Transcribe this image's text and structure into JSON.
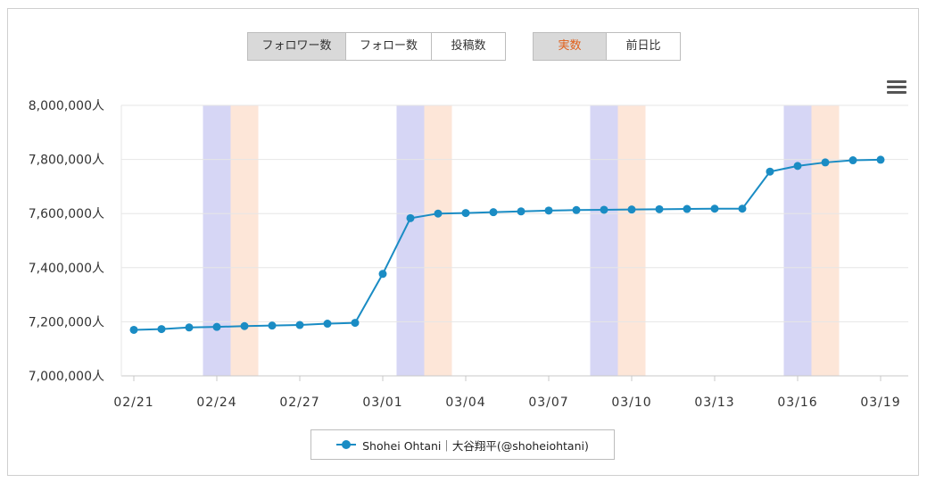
{
  "controls": {
    "metric_tabs": [
      {
        "label": "フォロワー数",
        "active": true
      },
      {
        "label": "フォロー数",
        "active": false
      },
      {
        "label": "投稿数",
        "active": false
      }
    ],
    "mode_tabs": [
      {
        "label": "実数",
        "active": true
      },
      {
        "label": "前日比",
        "active": false
      }
    ]
  },
  "colors": {
    "line": "#1a8cc4",
    "saturday_band": "#d6d6f5",
    "sunday_band": "#fde6d8",
    "active_accent": "#e0601b"
  },
  "legend": {
    "label": "Shohei Ohtani｜大谷翔平(@shoheiohtani)"
  },
  "chart_data": {
    "type": "line",
    "title": "",
    "xlabel": "",
    "ylabel": "",
    "ylim": [
      7000000,
      8000000
    ],
    "y_ticks": [
      "7,000,000人",
      "7,200,000人",
      "7,400,000人",
      "7,600,000人",
      "7,800,000人",
      "8,000,000人"
    ],
    "y_tick_values": [
      7000000,
      7200000,
      7400000,
      7600000,
      7800000,
      8000000
    ],
    "x": [
      "02/21",
      "02/22",
      "02/23",
      "02/24",
      "02/25",
      "02/26",
      "02/27",
      "02/28",
      "02/29",
      "03/01",
      "03/02",
      "03/03",
      "03/04",
      "03/05",
      "03/06",
      "03/07",
      "03/08",
      "03/09",
      "03/10",
      "03/11",
      "03/12",
      "03/13",
      "03/14",
      "03/15",
      "03/16",
      "03/17",
      "03/18",
      "03/19"
    ],
    "x_tick_labels": [
      "02/21",
      "02/24",
      "02/27",
      "03/01",
      "03/04",
      "03/07",
      "03/10",
      "03/13",
      "03/16",
      "03/19"
    ],
    "weekend_bands": [
      {
        "saturday": "02/24",
        "sunday": "02/25"
      },
      {
        "saturday": "03/02",
        "sunday": "03/03"
      },
      {
        "saturday": "03/09",
        "sunday": "03/10"
      },
      {
        "saturday": "03/16",
        "sunday": "03/17"
      }
    ],
    "series": [
      {
        "name": "Shohei Ohtani｜大谷翔平(@shoheiohtani)",
        "values": [
          7170000,
          7173000,
          7179000,
          7181000,
          7184000,
          7186000,
          7188000,
          7193000,
          7196000,
          7377000,
          7583000,
          7600000,
          7602000,
          7605000,
          7608000,
          7611000,
          7613000,
          7614000,
          7615000,
          7616000,
          7617000,
          7618000,
          7618000,
          7755000,
          7776000,
          7789000,
          7797000,
          7799000
        ]
      }
    ],
    "grid": true,
    "legend_position": "bottom"
  }
}
